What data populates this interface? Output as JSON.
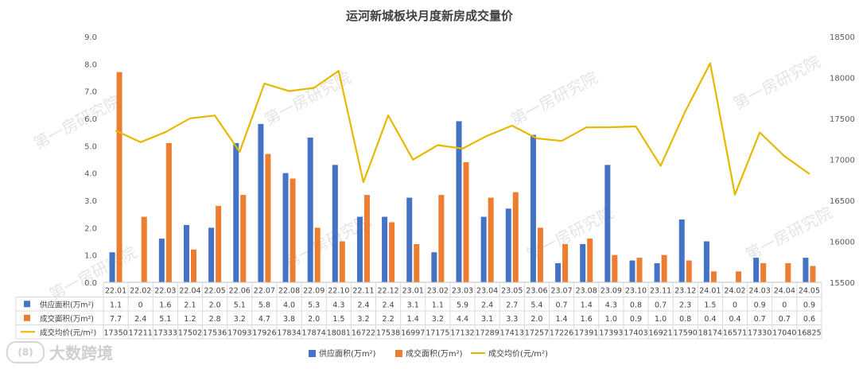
{
  "chart_data": {
    "type": "bar",
    "title": "运河新城板块月度新房成交量价",
    "categories": [
      "22.01",
      "22.02",
      "22.03",
      "22.04",
      "22.05",
      "22.06",
      "22.07",
      "22.08",
      "22.09",
      "22.10",
      "22.11",
      "22.12",
      "23.01",
      "23.02",
      "23.03",
      "23.04",
      "23.05",
      "23.06",
      "23.07",
      "23.08",
      "23.09",
      "23.10",
      "23.11",
      "23.12",
      "24.01",
      "24.02",
      "24.03",
      "24.04",
      "24.05"
    ],
    "series": [
      {
        "name": "供应面积(万m²)",
        "type": "bar",
        "axis": "left",
        "color": "#4472C4",
        "values": [
          1.1,
          0,
          1.6,
          2.1,
          2.0,
          5.1,
          5.8,
          4.0,
          5.3,
          4.3,
          2.4,
          2.4,
          3.1,
          1.1,
          5.9,
          2.4,
          2.7,
          5.4,
          0.7,
          1.4,
          4.3,
          0.8,
          0.7,
          2.3,
          1.5,
          0,
          0.9,
          0,
          0.9
        ],
        "labels": [
          "1.1",
          "0",
          "1.6",
          "2.1",
          "2.0",
          "5.1",
          "5.8",
          "4.0",
          "5.3",
          "4.3",
          "2.4",
          "2.4",
          "3.1",
          "1.1",
          "5.9",
          "2.4",
          "2.7",
          "5.4",
          "0.7",
          "1.4",
          "4.3",
          "0.8",
          "0.7",
          "2.3",
          "1.5",
          "0",
          "0.9",
          "0",
          "0.9"
        ]
      },
      {
        "name": "成交面积(万m²)",
        "type": "bar",
        "axis": "left",
        "color": "#ED7D31",
        "values": [
          7.7,
          2.4,
          5.1,
          1.2,
          2.8,
          3.2,
          4.7,
          3.8,
          2.0,
          1.5,
          3.2,
          2.2,
          1.4,
          3.2,
          4.4,
          3.1,
          3.3,
          2.0,
          1.4,
          1.6,
          1.0,
          0.9,
          1.0,
          0.8,
          0.4,
          0.4,
          0.7,
          0.7,
          0.6
        ],
        "labels": [
          "7.7",
          "2.4",
          "5.1",
          "1.2",
          "2.8",
          "3.2",
          "4.7",
          "3.8",
          "2.0",
          "1.5",
          "3.2",
          "2.2",
          "1.4",
          "3.2",
          "4.4",
          "3.1",
          "3.3",
          "2.0",
          "1.4",
          "1.6",
          "1.0",
          "0.9",
          "1.0",
          "0.8",
          "0.4",
          "0.4",
          "0.7",
          "0.7",
          "0.6"
        ]
      },
      {
        "name": "成交均价(元/m²)",
        "type": "line",
        "axis": "right",
        "color": "#E6B800",
        "values": [
          17350,
          17211,
          17333,
          17502,
          17536,
          17093,
          17926,
          17834,
          17874,
          18081,
          16722,
          17538,
          16997,
          17175,
          17132,
          17289,
          17413,
          17257,
          17226,
          17391,
          17393,
          17403,
          16921,
          17590,
          18174,
          16571,
          17330,
          17040,
          16825
        ],
        "labels": [
          "17350",
          "17211",
          "17333",
          "17502",
          "17536",
          "17093",
          "17926",
          "17834",
          "17874",
          "18081",
          "16722",
          "17538",
          "16997",
          "17175",
          "17132",
          "17289",
          "17413",
          "17257",
          "17226",
          "17391",
          "17393",
          "17403",
          "16921",
          "17590",
          "18174",
          "16571",
          "17330",
          "17040",
          "16825"
        ]
      }
    ],
    "y_left": {
      "range": [
        0,
        9
      ],
      "ticks": [
        "0.0",
        "1.0",
        "2.0",
        "3.0",
        "4.0",
        "5.0",
        "6.0",
        "7.0",
        "8.0",
        "9.0"
      ]
    },
    "y_right": {
      "range": [
        15500,
        18500
      ],
      "ticks": [
        "15500",
        "16000",
        "16500",
        "17000",
        "17500",
        "18000",
        "18500"
      ]
    },
    "legend_position": "bottom",
    "data_table": true,
    "grid": false
  },
  "watermark": "第一房研究院",
  "brand": {
    "logo_text": "(8)",
    "name": "大数跨境"
  }
}
